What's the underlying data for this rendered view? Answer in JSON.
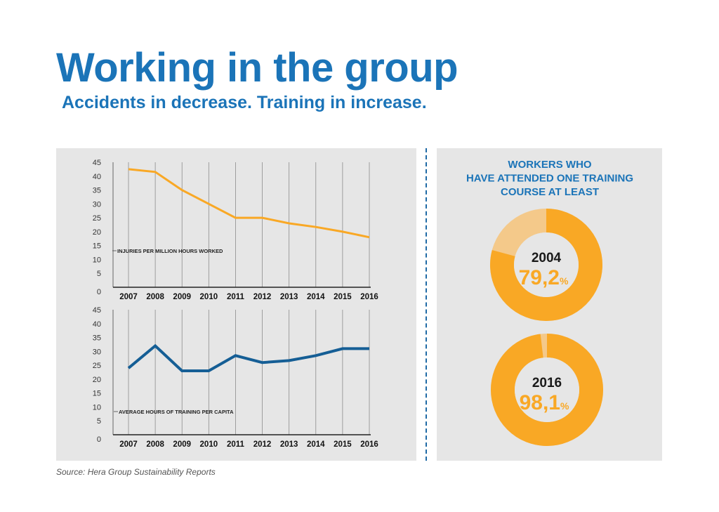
{
  "header": {
    "title": "Working in the group",
    "subtitle": "Accidents in decrease. Training in increase."
  },
  "source": "Source: Hera Group Sustainability Reports",
  "colors": {
    "accent_blue": "#1b74b8",
    "orange": "#f9a825",
    "orange_light": "#f4c98a",
    "line_blue": "#155e95",
    "panel_grey": "#e6e6e6"
  },
  "chart_data": [
    {
      "type": "line",
      "label": "INJURIES PER MILLION HOURS WORKED",
      "x": [
        "2007",
        "2008",
        "2009",
        "2010",
        "2011",
        "2012",
        "2013",
        "2014",
        "2015",
        "2016"
      ],
      "values": [
        42.5,
        41.5,
        35,
        30,
        25,
        25,
        23,
        21.7,
        20,
        18
      ],
      "yticks": [
        "0",
        "5",
        "10",
        "15",
        "20",
        "25",
        "30",
        "35",
        "40",
        "45"
      ],
      "ylim": [
        0,
        45
      ],
      "grid": "vertical",
      "color": "#f9a825"
    },
    {
      "type": "line",
      "label": "AVERAGE HOURS OF TRAINING PER CAPITA",
      "x": [
        "2007",
        "2008",
        "2009",
        "2010",
        "2011",
        "2012",
        "2013",
        "2014",
        "2015",
        "2016"
      ],
      "values": [
        24,
        32,
        23,
        23,
        28.5,
        26,
        26.7,
        28.5,
        31,
        31
      ],
      "yticks": [
        "0",
        "5",
        "10",
        "15",
        "20",
        "25",
        "30",
        "35",
        "40",
        "45"
      ],
      "ylim": [
        0,
        45
      ],
      "grid": "vertical",
      "color": "#155e95"
    },
    {
      "type": "pie",
      "title": "WORKERS WHO HAVE ATTENDED ONE TRAINING COURSE AT LEAST",
      "items": [
        {
          "year": "2004",
          "value_text": "79,2",
          "unit": "%",
          "value": 79.2
        },
        {
          "year": "2016",
          "value_text": "98,1",
          "unit": "%",
          "value": 98.1
        }
      ]
    }
  ]
}
